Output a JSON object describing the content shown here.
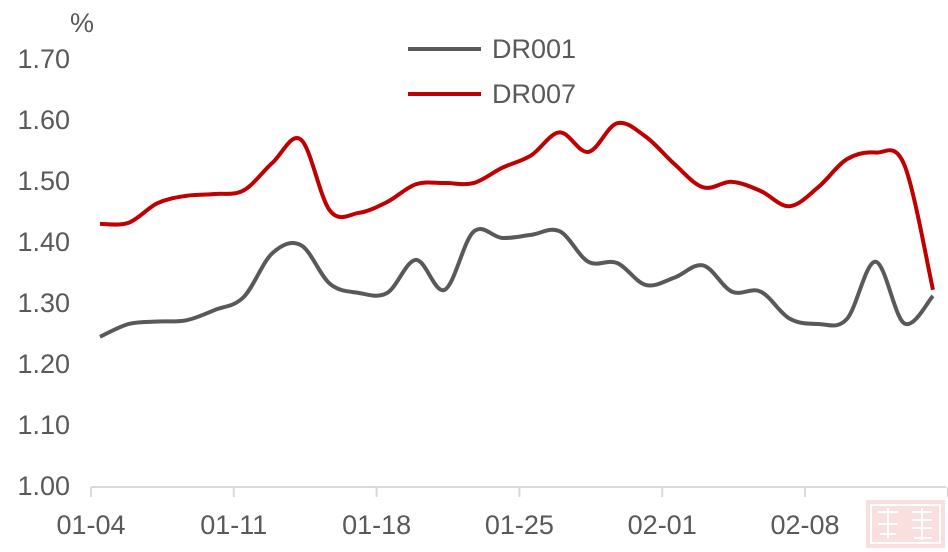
{
  "chart_data": {
    "type": "line",
    "title": "",
    "xlabel": "",
    "ylabel": "%",
    "ylim": [
      1.0,
      1.7
    ],
    "yticks": [
      "1.00",
      "1.10",
      "1.20",
      "1.30",
      "1.40",
      "1.50",
      "1.60",
      "1.70"
    ],
    "xtick_labels": [
      "01-04",
      "01-11",
      "01-18",
      "01-25",
      "02-01",
      "02-08"
    ],
    "grid": false,
    "legend": "top-center",
    "categories": [
      "01-04",
      "01-05",
      "01-06",
      "01-07",
      "01-08",
      "01-11",
      "01-12",
      "01-13",
      "01-14",
      "01-15",
      "01-18",
      "01-19",
      "01-20",
      "01-21",
      "01-22",
      "01-25",
      "01-26",
      "01-27",
      "01-28",
      "01-29",
      "02-01",
      "02-02",
      "02-03",
      "02-04",
      "02-05",
      "02-08",
      "02-09",
      "02-10",
      "02-11",
      "02-12"
    ],
    "series": [
      {
        "name": "DR001",
        "color": "#595959",
        "values": [
          1.243,
          1.264,
          1.268,
          1.27,
          1.287,
          1.308,
          1.38,
          1.393,
          1.33,
          1.315,
          1.315,
          1.369,
          1.32,
          1.415,
          1.405,
          1.41,
          1.416,
          1.366,
          1.364,
          1.328,
          1.34,
          1.36,
          1.317,
          1.317,
          1.273,
          1.264,
          1.272,
          1.366,
          1.265,
          1.31
        ]
      },
      {
        "name": "DR007",
        "color": "#C00000",
        "values": [
          1.428,
          1.43,
          1.462,
          1.474,
          1.477,
          1.483,
          1.528,
          1.566,
          1.45,
          1.446,
          1.464,
          1.493,
          1.495,
          1.495,
          1.52,
          1.54,
          1.578,
          1.546,
          1.593,
          1.571,
          1.526,
          1.488,
          1.497,
          1.482,
          1.457,
          1.488,
          1.534,
          1.545,
          1.525,
          1.32
        ]
      }
    ]
  }
}
